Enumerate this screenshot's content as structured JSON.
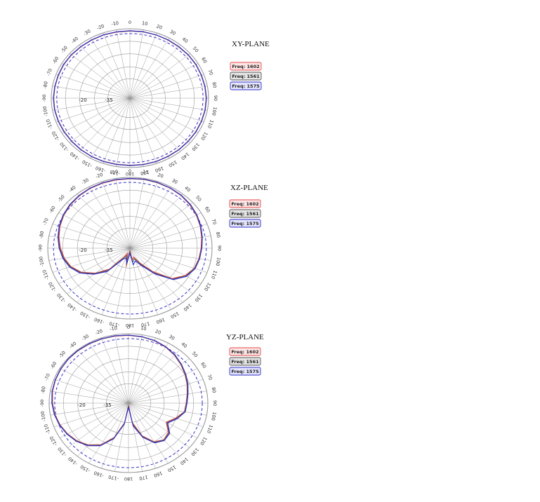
{
  "colors": {
    "freq_1602": "#e04848",
    "freq_1561": "#555555",
    "freq_1575": "#3030c8",
    "reference_circle": "#3030c8",
    "grid": "#9a9a9a"
  },
  "legend": [
    {
      "label": "Freq: 1602",
      "fill": "#ffe6e6",
      "stroke": "#e04848",
      "series": "freq_1602"
    },
    {
      "label": "Freq: 1561",
      "fill": "#e4e4e4",
      "stroke": "#555555",
      "series": "freq_1561"
    },
    {
      "label": "Freq: 1575",
      "fill": "#e4e4ff",
      "stroke": "#3030c8",
      "series": "freq_1575"
    }
  ],
  "chart_data": [
    {
      "type": "polar-line",
      "title": "XY-PLANE",
      "angle_labels": [
        "0",
        "10",
        "20",
        "30",
        "40",
        "50",
        "60",
        "70",
        "80",
        "90",
        "100",
        "110",
        "120",
        "130",
        "140",
        "150",
        "160",
        "170",
        "180",
        "-170",
        "-160",
        "-150",
        "-140",
        "-130",
        "-120",
        "-110",
        "-100",
        "-90",
        "-80",
        "-70",
        "-60",
        "-50",
        "-40",
        "-30",
        "-20",
        "-10"
      ],
      "radial_labels": [
        "-20",
        "-35"
      ],
      "grid": true,
      "series": [
        {
          "key": "freq_1602",
          "gain": [
            -1.4,
            -1.3,
            -1.3,
            -1.4,
            -1.5,
            -1.4,
            -1.4,
            -1.5,
            -1.4,
            -1.3,
            -1.3,
            -1.4,
            -1.4,
            -1.5,
            -1.4,
            -1.4,
            -1.3,
            -1.3,
            -1.4,
            -1.4,
            -1.3,
            -1.3,
            -1.4,
            -1.5,
            -1.5,
            -1.4,
            -1.3,
            -1.3,
            -1.4,
            -1.4,
            -1.3,
            -1.3,
            -1.4,
            -1.4,
            -1.3,
            -1.4
          ]
        },
        {
          "key": "freq_1561",
          "gain": [
            -1.3,
            -1.2,
            -1.3,
            -1.3,
            -1.4,
            -1.3,
            -1.3,
            -1.4,
            -1.3,
            -1.2,
            -1.2,
            -1.3,
            -1.3,
            -1.4,
            -1.3,
            -1.3,
            -1.2,
            -1.2,
            -1.3,
            -1.3,
            -1.2,
            -1.2,
            -1.3,
            -1.4,
            -1.4,
            -1.3,
            -1.2,
            -1.2,
            -1.3,
            -1.3,
            -1.2,
            -1.2,
            -1.3,
            -1.3,
            -1.2,
            -1.3
          ]
        },
        {
          "key": "freq_1575",
          "gain": [
            -1.2,
            -1.1,
            -1.2,
            -1.2,
            -1.3,
            -1.2,
            -1.2,
            -1.3,
            -1.2,
            -1.1,
            -1.1,
            -1.2,
            -1.2,
            -1.3,
            -1.2,
            -1.2,
            -1.1,
            -1.1,
            -1.2,
            -1.2,
            -1.1,
            -1.1,
            -1.2,
            -1.3,
            -1.3,
            -1.2,
            -1.1,
            -1.1,
            -1.2,
            -1.2,
            -1.1,
            -1.1,
            -1.2,
            -1.2,
            -1.1,
            -1.2
          ]
        }
      ]
    },
    {
      "type": "polar-line",
      "title": "XZ-PLANE",
      "angle_labels": [
        "0",
        "10",
        "20",
        "30",
        "40",
        "50",
        "60",
        "70",
        "80",
        "90",
        "100",
        "110",
        "120",
        "130",
        "140",
        "150",
        "160",
        "170",
        "180",
        "-170",
        "-160",
        "-150",
        "-140",
        "-130",
        "-120",
        "-110",
        "-100",
        "-90",
        "-80",
        "-70",
        "-60",
        "-50",
        "-40",
        "-30",
        "-20",
        "-10"
      ],
      "radial_labels": [
        "-20",
        "-35"
      ],
      "grid": true,
      "series": [
        {
          "key": "freq_1602",
          "gain": [
            -0.8,
            -0.6,
            -0.7,
            -0.9,
            -1.3,
            -2.0,
            -2.8,
            -3.8,
            -4.8,
            -5.6,
            -6.2,
            -7.0,
            -9.5,
            -14.0,
            -24.0,
            -32.0,
            -36.5,
            -35.0,
            -40.5,
            -31.0,
            -39.0,
            -36.0,
            -26.0,
            -19.0,
            -13.5,
            -10.0,
            -8.0,
            -6.5,
            -5.2,
            -4.0,
            -3.0,
            -2.2,
            -1.6,
            -1.2,
            -1.0,
            -0.9
          ]
        },
        {
          "key": "freq_1561",
          "gain": [
            -0.7,
            -0.5,
            -0.6,
            -0.8,
            -1.1,
            -1.8,
            -2.6,
            -3.6,
            -4.6,
            -5.4,
            -6.0,
            -6.8,
            -9.0,
            -13.5,
            -23.0,
            -31.0,
            -35.5,
            -33.5,
            -40.0,
            -32.0,
            -37.5,
            -35.0,
            -25.0,
            -18.5,
            -13.0,
            -9.6,
            -7.6,
            -6.1,
            -4.9,
            -3.7,
            -2.8,
            -2.0,
            -1.4,
            -1.0,
            -0.8,
            -0.7
          ]
        },
        {
          "key": "freq_1575",
          "gain": [
            -0.6,
            -0.4,
            -0.5,
            -0.7,
            -1.0,
            -1.6,
            -2.4,
            -3.4,
            -4.4,
            -5.2,
            -5.8,
            -6.5,
            -8.6,
            -13.0,
            -22.0,
            -30.0,
            -34.0,
            -32.0,
            -39.0,
            -33.0,
            -36.0,
            -34.0,
            -24.0,
            -18.0,
            -12.5,
            -9.2,
            -7.2,
            -5.8,
            -4.6,
            -3.5,
            -2.6,
            -1.8,
            -1.3,
            -0.9,
            -0.7,
            -0.6
          ]
        }
      ]
    },
    {
      "type": "polar-line",
      "title": "YZ-PLANE",
      "angle_labels": [
        "0",
        "10",
        "20",
        "30",
        "40",
        "50",
        "60",
        "70",
        "80",
        "90",
        "100",
        "110",
        "120",
        "130",
        "140",
        "150",
        "160",
        "170",
        "180",
        "-170",
        "-160",
        "-150",
        "-140",
        "-130",
        "-120",
        "-110",
        "-100",
        "-90",
        "-80",
        "-70",
        "-60",
        "-50",
        "-40",
        "-30",
        "-20",
        "-10"
      ],
      "radial_labels": [
        "-20",
        "-35"
      ],
      "grid": true,
      "series": [
        {
          "key": "freq_1602",
          "gain": [
            -1.0,
            -1.3,
            -1.8,
            -2.8,
            -4.2,
            -5.8,
            -7.5,
            -9.0,
            -10.5,
            -11.5,
            -12.0,
            -15.5,
            -19.0,
            -14.5,
            -13.0,
            -15.0,
            -21.0,
            -30.0,
            -40.5,
            -30.0,
            -20.0,
            -13.0,
            -9.0,
            -6.5,
            -4.8,
            -3.5,
            -2.5,
            -1.8,
            -1.2,
            -0.9,
            -0.7,
            -0.5,
            -0.5,
            -0.6,
            -0.7,
            -0.8
          ]
        },
        {
          "key": "freq_1561",
          "gain": [
            -0.9,
            -1.2,
            -1.7,
            -2.6,
            -4.0,
            -5.6,
            -7.3,
            -8.8,
            -10.3,
            -11.3,
            -11.8,
            -15.0,
            -18.5,
            -14.0,
            -12.8,
            -14.6,
            -20.5,
            -29.0,
            -40.0,
            -29.5,
            -19.5,
            -12.6,
            -8.7,
            -6.2,
            -4.6,
            -3.3,
            -2.3,
            -1.6,
            -1.0,
            -0.8,
            -0.6,
            -0.4,
            -0.4,
            -0.5,
            -0.6,
            -0.7
          ]
        },
        {
          "key": "freq_1575",
          "gain": [
            -0.8,
            -1.1,
            -1.6,
            -2.5,
            -3.8,
            -5.4,
            -7.0,
            -8.5,
            -10.0,
            -11.0,
            -11.5,
            -14.5,
            -18.0,
            -13.5,
            -12.5,
            -14.2,
            -20.0,
            -28.0,
            -39.5,
            -29.0,
            -19.0,
            -12.2,
            -8.4,
            -6.0,
            -4.4,
            -3.1,
            -2.1,
            -1.4,
            -0.9,
            -0.7,
            -0.5,
            -0.3,
            -0.3,
            -0.4,
            -0.5,
            -0.6
          ]
        }
      ]
    }
  ]
}
